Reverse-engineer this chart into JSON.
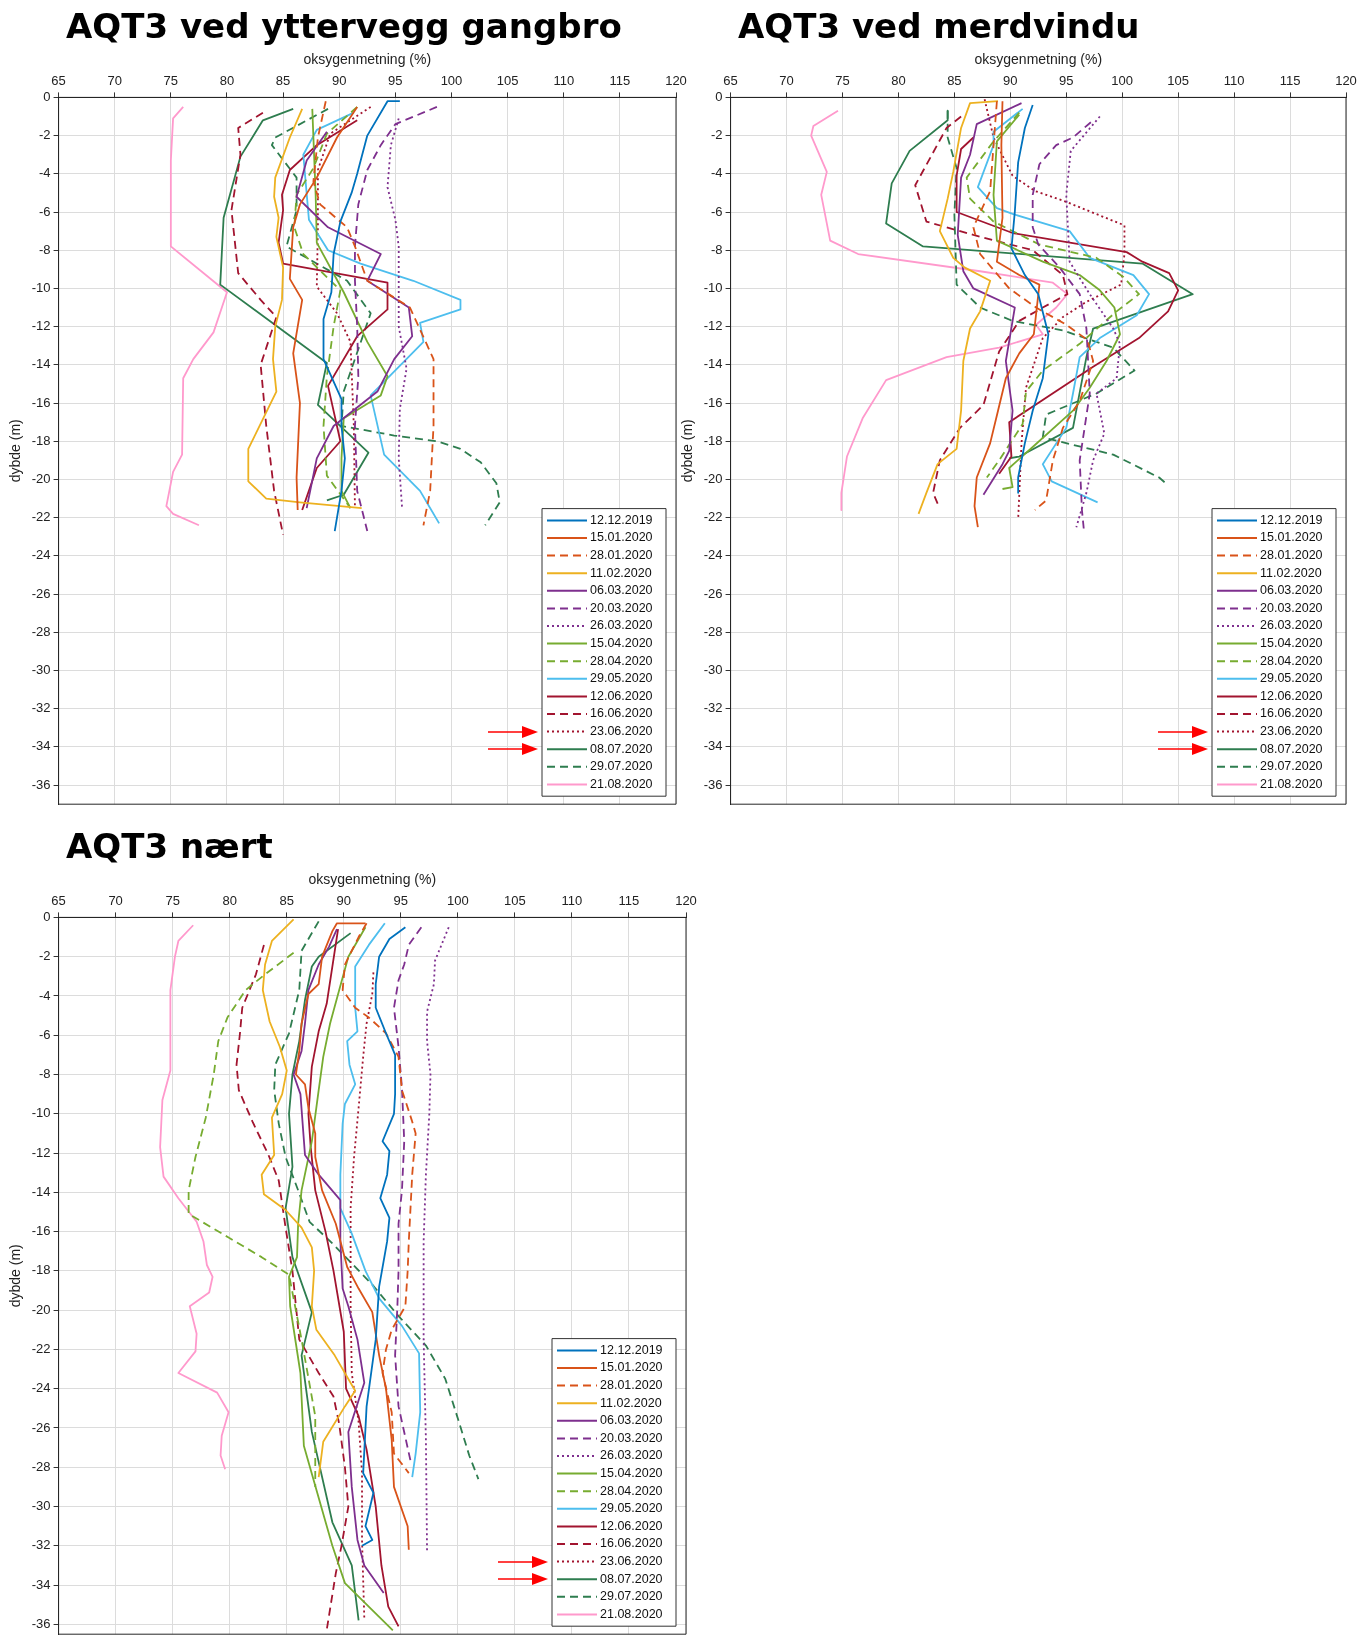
{
  "chart_data": [
    {
      "type": "line",
      "title": "AQT3 ved yttervegg gangbro",
      "xlabel": "oksygenmetning (%)",
      "ylabel": "dybde (m)",
      "xlim": [
        65,
        120
      ],
      "xticks": [
        65,
        70,
        75,
        80,
        85,
        90,
        95,
        100,
        105,
        110,
        115,
        120
      ],
      "ylim": [
        -37,
        0
      ],
      "yticks": [
        0,
        -2,
        -4,
        -6,
        -8,
        -10,
        -12,
        -14,
        -16,
        -18,
        -20,
        -22,
        -24,
        -26,
        -28,
        -30,
        -32,
        -34,
        -36
      ],
      "grid": true,
      "legend": "bottom right",
      "series": [
        {
          "name": "12.12.2019",
          "color": "#0072bd",
          "line_style": "solid",
          "x": [
            95.4,
            94.3,
            92.5,
            91.6,
            91.1,
            90.1,
            89.5,
            89.3,
            88.6,
            88.6,
            90.2,
            90.2,
            90.5,
            90.2,
            89.6
          ],
          "values": [
            -0.2,
            -0.2,
            -2,
            -4,
            -5,
            -6.5,
            -8.2,
            -10.2,
            -11.6,
            -13.7,
            -15.8,
            -17.2,
            -18.9,
            -20.6,
            -22.7
          ]
        },
        {
          "name": "15.01.2020",
          "color": "#d95319",
          "line_style": "solid",
          "x": [
            91.6,
            89.8,
            88.0,
            86.5,
            85.9,
            85.6,
            86.7,
            85.9,
            86.5,
            86.2,
            86.3
          ],
          "values": [
            -0.5,
            -2.1,
            -4.2,
            -5.6,
            -6.8,
            -9.5,
            -10.6,
            -13.4,
            -16,
            -19.9,
            -21.6
          ]
        },
        {
          "name": "28.01.2020",
          "color": "#d95319",
          "line_style": "dashed",
          "x": [
            88.8,
            88.1,
            87.7,
            88.3,
            90.7,
            91.4,
            92.5,
            96.3,
            98.4,
            98.4,
            98.1,
            97.5
          ],
          "values": [
            -0.2,
            -2.1,
            -4.4,
            -5.6,
            -6.8,
            -7.8,
            -9.6,
            -11,
            -13.7,
            -17.2,
            -20.6,
            -22.4
          ]
        },
        {
          "name": "11.02.2020",
          "color": "#edb120",
          "line_style": "solid",
          "x": [
            86.7,
            85.6,
            84.3,
            84.2,
            84.6,
            84.4,
            85.0,
            84.9,
            84.3,
            84.1,
            84.4,
            81.9,
            81.9,
            83.5,
            86.5,
            92.0
          ],
          "values": [
            -0.6,
            -2.1,
            -4.2,
            -5.2,
            -6.3,
            -7.3,
            -8.9,
            -10.6,
            -12,
            -13.7,
            -15.4,
            -18.4,
            -20.1,
            -21,
            -21.2,
            -21.5
          ]
        },
        {
          "name": "06.03.2020",
          "color": "#7e2f8e",
          "line_style": "solid",
          "x": [
            88.9,
            87.1,
            86.2,
            89.0,
            93.7,
            92.5,
            96.2,
            96.5,
            94.9,
            93.4,
            89.5,
            88.0,
            87.1
          ],
          "values": [
            -1.8,
            -3.3,
            -5.2,
            -6.8,
            -8.2,
            -9.6,
            -11,
            -12.5,
            -13.7,
            -15.4,
            -17.2,
            -18.9,
            -21.5
          ]
        },
        {
          "name": "20.03.2020",
          "color": "#7e2f8e",
          "line_style": "dashed",
          "x": [
            98.7,
            95.0,
            93.7,
            92.5,
            91.7,
            91.4,
            91.4,
            91.6,
            91.7,
            91.4,
            91.6,
            92.5
          ],
          "values": [
            -0.5,
            -1.4,
            -2.5,
            -3.8,
            -5.6,
            -7.8,
            -9.6,
            -12,
            -14.6,
            -17.2,
            -20.6,
            -22.7
          ]
        },
        {
          "name": "26.03.2020",
          "color": "#7e2f8e",
          "line_style": "dotted",
          "x": [
            95.3,
            94.6,
            94.3,
            95.0,
            95.3,
            95.3,
            96.0,
            95.4,
            95.3,
            95.6
          ],
          "values": [
            -1.1,
            -2.5,
            -4.7,
            -6.4,
            -7.8,
            -12,
            -14.2,
            -16.3,
            -18.9,
            -21.5
          ]
        },
        {
          "name": "15.04.2020",
          "color": "#77ac30",
          "line_style": "solid",
          "x": [
            87.6,
            87.7,
            87.9,
            88.0,
            90.4,
            92.5,
            94.3,
            93.7,
            90.4,
            90.2,
            90.2,
            91.0
          ],
          "values": [
            -0.6,
            -2.1,
            -5.1,
            -7.6,
            -10.2,
            -12.8,
            -14.6,
            -15.6,
            -16.8,
            -18.9,
            -20.6,
            -21.5
          ]
        },
        {
          "name": "28.04.2020",
          "color": "#77ac30",
          "line_style": "dashed",
          "x": [
            91.6,
            88.9,
            87.7,
            86.2,
            86.0,
            86.8,
            90.1,
            89.5,
            88.9,
            88.6,
            88.9,
            91.0
          ],
          "values": [
            -0.5,
            -1.9,
            -3.7,
            -5.1,
            -6.8,
            -8.2,
            -10.1,
            -12,
            -14.6,
            -17.2,
            -19.8,
            -21.5
          ]
        },
        {
          "name": "29.05.2020",
          "color": "#4dbeee",
          "line_style": "solid",
          "x": [
            91.3,
            88.0,
            86.8,
            87.3,
            89.0,
            91.9,
            96.6,
            100.8,
            100.8,
            97.2,
            97.5,
            92.8,
            94.0,
            97.2,
            98.9
          ],
          "values": [
            -0.8,
            -1.7,
            -3,
            -6.4,
            -8,
            -8.7,
            -9.6,
            -10.6,
            -11.1,
            -11.8,
            -12.8,
            -15.6,
            -18.7,
            -20.6,
            -22.3
          ]
        },
        {
          "name": "12.06.2020",
          "color": "#a2142f",
          "line_style": "solid",
          "x": [
            91.6,
            88.0,
            85.6,
            84.9,
            85.0,
            84.6,
            85.0,
            94.3,
            94.3,
            91.6,
            89.0,
            90.1,
            88.0,
            86.7
          ],
          "values": [
            -1.2,
            -2.5,
            -3.8,
            -5.1,
            -5.9,
            -7.6,
            -8.7,
            -9.7,
            -11.1,
            -12.5,
            -15.1,
            -18,
            -19.4,
            -21.6
          ]
        },
        {
          "name": "16.06.2020",
          "color": "#a2142f",
          "line_style": "dashed",
          "x": [
            83.2,
            81.0,
            81.2,
            80.4,
            81.0,
            83.0,
            84.4,
            83.0,
            83.5,
            84.2,
            85.0
          ],
          "values": [
            -0.8,
            -1.6,
            -3,
            -5.9,
            -9.2,
            -10.6,
            -11.5,
            -14,
            -17.2,
            -20.6,
            -22.9
          ]
        },
        {
          "name": "23.06.2020",
          "color": "#a2142f",
          "line_style": "dotted",
          "x": [
            92.8,
            89.2,
            88.1,
            88.1,
            88.0,
            89.8,
            91.0,
            91.3,
            91.4
          ],
          "values": [
            -0.5,
            -1.9,
            -3.8,
            -6.8,
            -9.9,
            -11.3,
            -12.8,
            -17.2,
            -21.5
          ]
        },
        {
          "name": "08.07.2020",
          "color": "#2e7d4f",
          "line_style": "solid",
          "x": [
            85.9,
            83.2,
            81.2,
            79.7,
            79.4,
            88.9,
            88.1,
            92.6,
            90.4,
            88.9
          ],
          "values": [
            -0.6,
            -1.2,
            -3.1,
            -6.3,
            -9.8,
            -13.9,
            -16.1,
            -18.6,
            -20.8,
            -21.1
          ]
        },
        {
          "name": "29.07.2020",
          "color": "#2e7d4f",
          "line_style": "dashed",
          "x": [
            89.0,
            84.3,
            84.0,
            86.2,
            86.2,
            85.3,
            90.7,
            92.8,
            90.4,
            90.2,
            94.9,
            98.7,
            100.8,
            102.6,
            104.0,
            104.3,
            103.0
          ],
          "values": [
            -0.6,
            -2.1,
            -2.5,
            -4.2,
            -5.9,
            -7.8,
            -9.6,
            -11.3,
            -15.4,
            -17.2,
            -17.7,
            -18,
            -18.4,
            -19.1,
            -20.2,
            -21.2,
            -22.4
          ]
        },
        {
          "name": "21.08.2020",
          "color": "#ff99cc",
          "line_style": "solid",
          "x": [
            76.1,
            75.2,
            75.0,
            75.0,
            80.0,
            78.8,
            77.0,
            76.1,
            76.0,
            75.2,
            74.6,
            75.2,
            77.5
          ],
          "values": [
            -0.5,
            -1.1,
            -3.3,
            -7.8,
            -10.2,
            -12.3,
            -13.7,
            -14.7,
            -18.7,
            -19.6,
            -21.4,
            -21.8,
            -22.4
          ]
        }
      ]
    },
    {
      "type": "line",
      "title": "AQT3 ved merdvindu",
      "xlabel": "oksygenmetning (%)",
      "ylabel": "dybde (m)",
      "xlim": [
        65,
        120
      ],
      "xticks": [
        65,
        70,
        75,
        80,
        85,
        90,
        95,
        100,
        105,
        110,
        115,
        120
      ],
      "ylim": [
        -37,
        0
      ],
      "yticks": [
        0,
        -2,
        -4,
        -6,
        -8,
        -10,
        -12,
        -14,
        -16,
        -18,
        -20,
        -22,
        -24,
        -26,
        -28,
        -30,
        -32,
        -34,
        -36
      ],
      "grid": true,
      "legend": "bottom right",
      "series": [
        {
          "name": "12.12.2019",
          "color": "#0072bd",
          "line_style": "solid",
          "x": [
            92.0,
            91.3,
            90.7,
            90.4,
            90.1,
            91.3,
            92.5,
            93.4,
            92.9,
            92.0,
            91.3,
            90.7,
            90.7
          ],
          "values": [
            -0.4,
            -1.6,
            -3.4,
            -6,
            -7.9,
            -9.3,
            -10.3,
            -12.4,
            -14.7,
            -16.4,
            -18.1,
            -19.9,
            -20.7
          ]
        },
        {
          "name": "15.01.2020",
          "color": "#d95319",
          "line_style": "solid",
          "x": [
            89.3,
            89.2,
            89.3,
            88.8,
            90.8,
            92.6,
            92.1,
            90.8,
            89.6,
            88.9,
            88.2,
            87.0,
            86.8,
            87.1
          ],
          "values": [
            -0.2,
            -2.5,
            -6.3,
            -8.6,
            -9.3,
            -9.8,
            -12.4,
            -13.4,
            -14.7,
            -16.4,
            -18.1,
            -19.9,
            -21.4,
            -22.5
          ]
        },
        {
          "name": "28.01.2020",
          "color": "#d95319",
          "line_style": "dashed",
          "x": [
            88.8,
            88.5,
            88.2,
            86.7,
            87.3,
            89.9,
            92.3,
            95.0,
            96.9,
            97.4,
            96.2,
            94.7,
            93.8,
            93.2,
            92.2
          ],
          "values": [
            -0.2,
            -2.5,
            -4.9,
            -6.8,
            -8.2,
            -10,
            -11,
            -11.9,
            -12.7,
            -13.8,
            -15.9,
            -17.3,
            -19,
            -21.1,
            -21.6
          ]
        },
        {
          "name": "11.02.2020",
          "color": "#edb120",
          "line_style": "solid",
          "x": [
            88.9,
            86.4,
            85.6,
            84.9,
            84.4,
            83.7,
            84.9,
            85.9,
            88.2,
            87.3,
            86.4,
            85.8,
            85.6,
            85.2,
            83.5,
            82.5,
            81.8
          ],
          "values": [
            -0.2,
            -0.3,
            -1.6,
            -3.9,
            -5.3,
            -7,
            -8.4,
            -8.9,
            -9.6,
            -11.2,
            -12.1,
            -13.8,
            -16.4,
            -18.4,
            -19.2,
            -20.7,
            -21.8
          ]
        },
        {
          "name": "06.03.2020",
          "color": "#7e2f8e",
          "line_style": "solid",
          "x": [
            91.0,
            87.0,
            86.4,
            85.6,
            85.3,
            85.8,
            86.7,
            90.4,
            89.6,
            90.2,
            89.9,
            89.3,
            87.6
          ],
          "values": [
            -0.3,
            -1.4,
            -3,
            -4.2,
            -7.2,
            -9.1,
            -10,
            -11,
            -13.8,
            -16.4,
            -18.5,
            -19.2,
            -20.8
          ]
        },
        {
          "name": "20.03.2020",
          "color": "#7e2f8e",
          "line_style": "dashed",
          "x": [
            97.2,
            95.6,
            94.1,
            92.6,
            92.0,
            92.0,
            92.5,
            94.4,
            96.2,
            96.8,
            97.1,
            96.2,
            96.4,
            96.6
          ],
          "values": [
            -1.3,
            -2.1,
            -2.5,
            -3.5,
            -5.1,
            -6.8,
            -7.7,
            -8.9,
            -10.3,
            -12.1,
            -15.5,
            -19,
            -21.6,
            -22.8
          ]
        },
        {
          "name": "26.03.2020",
          "color": "#7e2f8e",
          "line_style": "dotted",
          "x": [
            98.0,
            95.4,
            95.0,
            95.3,
            97.1,
            99.2,
            99.8,
            99.5,
            97.7,
            98.4,
            97.4,
            96.8,
            95.9
          ],
          "values": [
            -1,
            -2.8,
            -5.1,
            -8.6,
            -10.3,
            -12.1,
            -12.9,
            -14.7,
            -15.5,
            -17.6,
            -19,
            -20.7,
            -22.5
          ]
        },
        {
          "name": "15.04.2020",
          "color": "#77ac30",
          "line_style": "solid",
          "x": [
            90.8,
            88.8,
            88.5,
            88.8,
            92.9,
            96.2,
            98.0,
            99.3,
            99.8,
            98.6,
            97.1,
            95.6,
            92.0,
            89.9,
            90.2,
            89.3
          ],
          "values": [
            -0.9,
            -2.3,
            -5.1,
            -7.5,
            -8.6,
            -9.3,
            -10.1,
            -11,
            -12.4,
            -13.8,
            -15.2,
            -16.4,
            -18.3,
            -19.4,
            -20.4,
            -20.5
          ]
        },
        {
          "name": "28.04.2020",
          "color": "#77ac30",
          "line_style": "dashed",
          "x": [
            90.8,
            88.5,
            86.1,
            86.4,
            88.5,
            92.6,
            97.7,
            100.1,
            101.5,
            99.5,
            96.2,
            92.9,
            91.4,
            91.1,
            89.0,
            87.9
          ],
          "values": [
            -0.8,
            -2.3,
            -4.2,
            -5.3,
            -6.5,
            -7.7,
            -8.4,
            -9.4,
            -10.3,
            -11.2,
            -12.9,
            -14.3,
            -15.4,
            -17.1,
            -19,
            -19.9
          ]
        },
        {
          "name": "29.05.2020",
          "color": "#4dbeee",
          "line_style": "solid",
          "x": [
            91.1,
            88.5,
            88.5,
            87.1,
            88.8,
            90.2,
            95.3,
            97.1,
            101.0,
            102.4,
            101.3,
            98.0,
            96.2,
            95.6,
            95.0,
            92.9,
            93.7,
            97.8
          ],
          "values": [
            -0.6,
            -1.8,
            -2.5,
            -4.7,
            -5.8,
            -6.1,
            -7,
            -8.4,
            -9.3,
            -10.3,
            -11.4,
            -12.6,
            -13.6,
            -15.5,
            -17.3,
            -19.2,
            -20.1,
            -21.2
          ]
        },
        {
          "name": "12.06.2020",
          "color": "#a2142f",
          "line_style": "solid",
          "x": [
            86.7,
            85.6,
            85.2,
            85.2,
            90.2,
            100.4,
            101.8,
            104.2,
            105.0,
            104.1,
            101.5,
            97.4,
            89.9,
            90.1,
            89.0
          ],
          "values": [
            -2.1,
            -2.7,
            -4.1,
            -6,
            -7.1,
            -8.1,
            -8.6,
            -9.2,
            -10.1,
            -11.2,
            -12.6,
            -14.1,
            -17,
            -18.8,
            -19.7
          ]
        },
        {
          "name": "16.06.2020",
          "color": "#a2142f",
          "line_style": "dashed",
          "x": [
            85.6,
            84.3,
            81.5,
            82.5,
            86.7,
            92.0,
            94.7,
            95.1,
            92.9,
            90.8,
            89.0,
            87.6,
            85.5,
            83.7,
            83.1,
            83.6
          ],
          "values": [
            -1,
            -1.6,
            -4.6,
            -6.5,
            -7.2,
            -8,
            -9.3,
            -10.3,
            -11,
            -11.7,
            -13.3,
            -16.1,
            -17.3,
            -19,
            -20.7,
            -21.4
          ]
        },
        {
          "name": "23.06.2020",
          "color": "#a2142f",
          "line_style": "dotted",
          "x": [
            87.7,
            88.5,
            90.2,
            92.2,
            94.7,
            100.2,
            100.2,
            99.9,
            96.8,
            94.7,
            92.9,
            91.4,
            91.0,
            90.7
          ],
          "values": [
            -0.1,
            -2.1,
            -4.1,
            -4.9,
            -5.4,
            -6.7,
            -8.2,
            -9.8,
            -10.7,
            -11.5,
            -12.6,
            -15.2,
            -18.1,
            -22.1
          ]
        },
        {
          "name": "08.07.2020",
          "color": "#2e7d4f",
          "line_style": "solid",
          "x": [
            84.4,
            84.4,
            81.0,
            79.4,
            78.9,
            82.2,
            101.8,
            106.3,
            97.4,
            96.8,
            95.6,
            90.8,
            89.9
          ],
          "values": [
            -0.7,
            -1.2,
            -2.8,
            -4.5,
            -6.6,
            -7.8,
            -8.7,
            -10.3,
            -12.1,
            -13.6,
            -17.3,
            -18.8,
            -18.9
          ]
        },
        {
          "name": "29.07.2020",
          "color": "#2e7d4f",
          "line_style": "dashed",
          "x": [
            84.4,
            84.4,
            85.2,
            85.0,
            85.2,
            87.3,
            90.2,
            94.7,
            99.2,
            101.1,
            97.7,
            93.2,
            92.9,
            99.2,
            103.3,
            104.1
          ],
          "values": [
            -0.7,
            -2.1,
            -3.7,
            -6.1,
            -9.8,
            -11,
            -11.7,
            -12.2,
            -13.1,
            -14.3,
            -15.5,
            -16.6,
            -17.8,
            -18.7,
            -19.9,
            -20.3
          ]
        },
        {
          "name": "21.08.2020",
          "color": "#ff99cc",
          "line_style": "solid",
          "x": [
            74.6,
            72.4,
            72.2,
            73.6,
            73.1,
            73.9,
            76.4,
            87.3,
            93.8,
            95.1,
            94.1,
            92.3,
            92.9,
            89.0,
            84.3,
            78.9,
            76.8,
            75.4,
            74.9,
            74.9
          ],
          "values": [
            -0.7,
            -1.5,
            -2,
            -3.9,
            -5.1,
            -7.5,
            -8.2,
            -9.1,
            -9.7,
            -10.3,
            -11,
            -11.9,
            -12.4,
            -13.1,
            -13.6,
            -14.8,
            -16.8,
            -18.8,
            -20.7,
            -21.6
          ]
        }
      ]
    },
    {
      "type": "line",
      "title": "AQT3 nært",
      "xlabel": "oksygenmetning (%)",
      "ylabel": "dybde (m)",
      "xlim": [
        65,
        120
      ],
      "xticks": [
        65,
        70,
        75,
        80,
        85,
        90,
        95,
        100,
        105,
        110,
        115,
        120
      ],
      "ylim": [
        -36.5,
        0
      ],
      "yticks": [
        0,
        -2,
        -4,
        -6,
        -8,
        -10,
        -12,
        -14,
        -16,
        -18,
        -20,
        -22,
        -24,
        -26,
        -28,
        -30,
        -32,
        -34,
        -36
      ],
      "grid": true,
      "legend": "bottom right",
      "series": [
        {
          "name": "12.12.2019",
          "color": "#0072bd",
          "line_style": "solid",
          "x": [
            95.4,
            94.0,
            93.1,
            92.8,
            92.8,
            93.7,
            94.5,
            94.5,
            94.4,
            93.4,
            94.0,
            93.8,
            93.2,
            94.0,
            93.8,
            93.1,
            92.8,
            92.0,
            91.7,
            92.6,
            91.9,
            92.5,
            91.6
          ],
          "values": [
            -0.5,
            -1.1,
            -2,
            -3.4,
            -4.6,
            -5.9,
            -7,
            -9,
            -10,
            -11.4,
            -11.9,
            -13.1,
            -14.3,
            -15.3,
            -16.5,
            -18.8,
            -21.5,
            -24.9,
            -28.3,
            -29.3,
            -31,
            -31.7,
            -32
          ]
        },
        {
          "name": "15.01.2020",
          "color": "#d95319",
          "line_style": "solid",
          "x": [
            91.9,
            89.4,
            89.0,
            88.1,
            87.8,
            86.9,
            86.3,
            86.1,
            85.8,
            86.6,
            86.9,
            87.5,
            87.5,
            88.1,
            89.3,
            90.3,
            91.3,
            92.5,
            93.1,
            93.7,
            94.2,
            94.4,
            95.6,
            95.7
          ],
          "values": [
            -0.3,
            -0.3,
            -0.7,
            -2,
            -3.4,
            -3.9,
            -5.4,
            -6.8,
            -8,
            -8.5,
            -9.7,
            -11,
            -12.2,
            -13.9,
            -15.6,
            -17.8,
            -18.9,
            -20.1,
            -22.3,
            -24,
            -26.6,
            -29,
            -31,
            -32.2
          ]
        },
        {
          "name": "28.01.2020",
          "color": "#d95319",
          "line_style": "dashed",
          "x": [
            92.0,
            91.3,
            90.1,
            89.9,
            91.0,
            92.2,
            93.7,
            94.8,
            95.1,
            96.0,
            96.3,
            96.0,
            95.7,
            95.6,
            95.4,
            94.2,
            93.7,
            93.4,
            94.2,
            94.4,
            95.7
          ],
          "values": [
            -0.3,
            -1,
            -2.4,
            -3.7,
            -4.6,
            -5.1,
            -5.9,
            -7.1,
            -8.8,
            -10.4,
            -11,
            -13.1,
            -16.5,
            -18,
            -19.8,
            -21,
            -22,
            -23.2,
            -25.2,
            -27.3,
            -28.3
          ]
        },
        {
          "name": "11.02.2020",
          "color": "#edb120",
          "line_style": "solid",
          "x": [
            85.6,
            83.7,
            83.1,
            82.9,
            83.5,
            84.4,
            85.0,
            84.6,
            83.7,
            83.9,
            82.8,
            83.0,
            84.9,
            86.3,
            87.2,
            87.4,
            87.2,
            87.6,
            89.2,
            91.0,
            90.1,
            88.2,
            87.8
          ],
          "values": [
            -0.1,
            -1.2,
            -2.4,
            -3.7,
            -5.3,
            -6.6,
            -7.8,
            -9,
            -10.2,
            -12.1,
            -13.1,
            -14.1,
            -14.9,
            -15.8,
            -16.8,
            -18,
            -19.8,
            -21,
            -22.3,
            -24.1,
            -24.9,
            -26.7,
            -28.5
          ]
        },
        {
          "name": "06.03.2020",
          "color": "#7e2f8e",
          "line_style": "solid",
          "x": [
            89.4,
            88.7,
            87.8,
            86.9,
            86.6,
            86.3,
            85.6,
            86.2,
            86.6,
            87.8,
            89.7,
            89.7,
            89.9,
            90.4,
            91.2,
            91.8,
            90.4,
            90.7,
            91.2,
            91.8,
            93.5
          ],
          "values": [
            -0.6,
            -1.5,
            -2.4,
            -3.7,
            -5.4,
            -6.8,
            -8,
            -9,
            -12.1,
            -13.1,
            -14.4,
            -16.5,
            -18.9,
            -19.8,
            -21.5,
            -23.7,
            -26.2,
            -29,
            -31.7,
            -33,
            -34.4
          ]
        },
        {
          "name": "20.03.2020",
          "color": "#7e2f8e",
          "line_style": "dashed",
          "x": [
            96.8,
            95.7,
            95.3,
            94.8,
            94.4,
            94.8,
            95.1,
            95.3,
            95.1,
            94.8,
            94.8,
            94.7,
            94.5,
            94.8,
            95.9
          ],
          "values": [
            -0.5,
            -1.4,
            -2.4,
            -3.2,
            -4.6,
            -6.6,
            -8.7,
            -11.4,
            -13.9,
            -15.6,
            -18,
            -19.8,
            -22.3,
            -24.9,
            -27.8
          ]
        },
        {
          "name": "26.03.2020",
          "color": "#7e2f8e",
          "line_style": "dotted",
          "x": [
            99.2,
            98.0,
            97.9,
            97.3,
            97.3,
            97.6,
            97.5,
            97.2,
            97.0,
            97.0,
            97.2,
            97.3
          ],
          "values": [
            -0.5,
            -2.2,
            -3.4,
            -4.8,
            -6.3,
            -8,
            -10,
            -13.1,
            -16.5,
            -21.5,
            -26.6,
            -32.3
          ]
        },
        {
          "name": "15.04.2020",
          "color": "#77ac30",
          "line_style": "solid",
          "x": [
            91.9,
            90.4,
            89.6,
            88.8,
            88.2,
            87.8,
            87.2,
            86.3,
            86.0,
            85.9,
            85.2,
            85.3,
            86.2,
            86.5,
            89.0,
            90.1,
            94.3
          ],
          "values": [
            -0.5,
            -2,
            -3.7,
            -5.4,
            -7.1,
            -8.8,
            -11.4,
            -13.9,
            -15.6,
            -17.3,
            -18.3,
            -19.8,
            -23.2,
            -26.9,
            -32,
            -33.9,
            -36.3
          ]
        },
        {
          "name": "28.04.2020",
          "color": "#77ac30",
          "line_style": "dashed",
          "x": [
            85.6,
            83.1,
            81.4,
            79.8,
            79.0,
            78.6,
            77.9,
            77.0,
            76.4,
            76.4,
            79.9,
            82.8,
            85.2,
            86.3,
            87.5,
            87.5
          ],
          "values": [
            -1.8,
            -2.9,
            -3.7,
            -5.1,
            -6.3,
            -8,
            -10.2,
            -12.2,
            -13.9,
            -15.1,
            -16.3,
            -17.3,
            -18.2,
            -21.5,
            -25.4,
            -29
          ]
        },
        {
          "name": "29.05.2020",
          "color": "#4dbeee",
          "line_style": "solid",
          "x": [
            93.6,
            92.2,
            91.0,
            91.0,
            91.2,
            90.3,
            90.5,
            91.0,
            90.1,
            89.9,
            89.7,
            89.7,
            90.7,
            91.9,
            93.1,
            95.1,
            96.6,
            96.7,
            96.3,
            96.0
          ],
          "values": [
            -0.3,
            -1.4,
            -2.5,
            -4.6,
            -5.8,
            -6.3,
            -7.5,
            -8.5,
            -9.5,
            -10.5,
            -13.1,
            -14.8,
            -16.1,
            -18,
            -19.4,
            -20.8,
            -22.2,
            -25.2,
            -27.3,
            -28.5
          ]
        },
        {
          "name": "12.06.2020",
          "color": "#a2142f",
          "line_style": "solid",
          "x": [
            89.5,
            88.5,
            87.8,
            87.2,
            86.9,
            87.1,
            87.5,
            88.4,
            89.1,
            90.0,
            90.2,
            91.3,
            92.0,
            92.8,
            93.3,
            93.9,
            94.8
          ],
          "values": [
            -0.6,
            -4.4,
            -5.8,
            -7.6,
            -10,
            -11.7,
            -13.9,
            -16,
            -18,
            -21.1,
            -24,
            -25.4,
            -27.1,
            -30,
            -33,
            -35.1,
            -36.1
          ]
        },
        {
          "name": "16.06.2020",
          "color": "#a2142f",
          "line_style": "dashed",
          "x": [
            83.0,
            82.3,
            81.1,
            80.9,
            80.6,
            80.8,
            82.0,
            83.4,
            84.3,
            84.9,
            85.5,
            86.1,
            87.8,
            89.1,
            89.6,
            90.1,
            90.4,
            89.8,
            89.3,
            88.5
          ],
          "values": [
            -1.4,
            -2.9,
            -4.6,
            -5.9,
            -7.5,
            -8.8,
            -10.4,
            -12.1,
            -13.4,
            -15.8,
            -18,
            -21.5,
            -23.2,
            -24.4,
            -25.8,
            -28,
            -30,
            -32,
            -33.4,
            -36.3
          ]
        },
        {
          "name": "23.06.2020",
          "color": "#a2142f",
          "line_style": "dotted",
          "x": [
            92.6,
            92.5,
            92.0,
            91.7,
            91.3,
            90.9,
            90.6,
            90.6,
            90.6,
            90.7,
            91.3,
            91.6,
            91.6,
            91.8
          ],
          "values": [
            -2.8,
            -3.9,
            -5.4,
            -7.1,
            -9.7,
            -12.2,
            -14.8,
            -18,
            -19.8,
            -23.2,
            -25.7,
            -28.3,
            -31.7,
            -35.7
          ]
        },
        {
          "name": "08.07.2020",
          "color": "#2e7d4f",
          "line_style": "solid",
          "x": [
            90.6,
            87.8,
            87.2,
            86.6,
            86.1,
            85.5,
            85.2,
            85.5,
            84.9,
            85.5,
            87.2,
            86.3,
            87.2,
            89.0,
            90.7,
            91.3
          ],
          "values": [
            -0.8,
            -2,
            -2.5,
            -4.2,
            -6.3,
            -8,
            -10,
            -12.7,
            -14.8,
            -17.3,
            -20.1,
            -22.3,
            -26.2,
            -30.8,
            -33,
            -35.8
          ]
        },
        {
          "name": "29.07.2020",
          "color": "#2e7d4f",
          "line_style": "dashed",
          "x": [
            87.8,
            86.3,
            86.1,
            85.2,
            84.0,
            83.9,
            84.3,
            84.9,
            86.0,
            87.0,
            89.0,
            92.5,
            94.8,
            97.2,
            98.9,
            100.1,
            101.0,
            101.8
          ],
          "values": [
            -0.2,
            -1.7,
            -3.7,
            -5.9,
            -7.5,
            -8.8,
            -10.5,
            -12.2,
            -13.9,
            -15.5,
            -16.6,
            -18.7,
            -20.3,
            -21.8,
            -23.5,
            -25.7,
            -27.4,
            -28.6
          ]
        },
        {
          "name": "21.08.2020",
          "color": "#ff99cc",
          "line_style": "solid",
          "x": [
            76.8,
            75.5,
            75.2,
            74.8,
            74.8,
            74.1,
            73.9,
            74.2,
            75.5,
            77.1,
            77.7,
            78.0,
            78.5,
            78.2,
            76.5,
            77.1,
            77.0,
            75.5,
            78.9,
            79.9,
            79.3,
            79.2,
            79.6
          ],
          "values": [
            -0.4,
            -1.2,
            -2,
            -3.7,
            -7.8,
            -9.3,
            -11.7,
            -13.2,
            -14.3,
            -15.5,
            -16.5,
            -17.7,
            -18.3,
            -19.1,
            -19.8,
            -21.2,
            -22.1,
            -23.2,
            -24.2,
            -25.2,
            -26.4,
            -27.4,
            -28.1
          ]
        }
      ]
    }
  ]
}
